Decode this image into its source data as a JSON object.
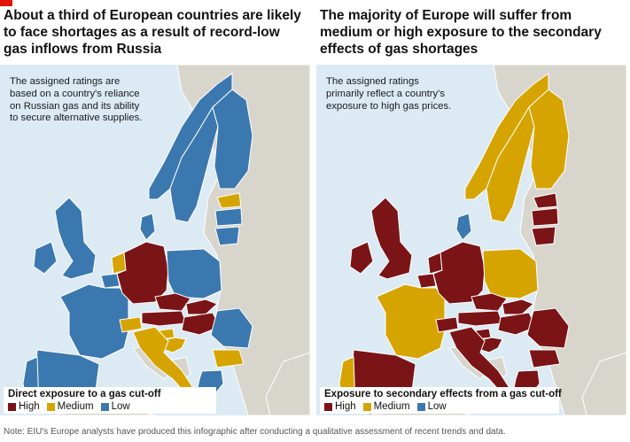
{
  "brand_color": "#e3120b",
  "colors": {
    "high": "#7b1416",
    "medium": "#d6a400",
    "low": "#3b78af",
    "sea": "#dceaf4",
    "land": "#d8d5cd"
  },
  "left_panel": {
    "title": "About a third of European countries  are likely to face shortages as a result of record-low gas inflows from Russia",
    "note": "The assigned ratings are based on a country's reliance on Russian gas and its ability to secure alternative supplies.",
    "legend_title": "Direct exposure to a gas cut-off",
    "ratings": {
      "norway": "low",
      "sweden": "low",
      "finland": "low",
      "estonia": "medium",
      "latvia": "low",
      "lithuania": "low",
      "denmark": "low",
      "uk": "low",
      "ireland": "low",
      "netherlands": "medium",
      "belgium": "low",
      "france": "low",
      "spain": "low",
      "portugal": "low",
      "germany": "high",
      "poland": "low",
      "czechia": "high",
      "slovakia": "high",
      "austria": "high",
      "hungary": "high",
      "switzerland": "medium",
      "italy": "medium",
      "slovenia": "medium",
      "croatia": "medium",
      "romania": "low",
      "bulgaria": "medium",
      "greece": "low"
    }
  },
  "right_panel": {
    "title": "The majority of Europe will suffer from medium or high exposure to the  secondary effects of gas shortages",
    "note": "The assigned ratings primarily reflect a country's exposure to high gas prices.",
    "legend_title": "Exposure to secondary effects from a gas cut-off",
    "ratings": {
      "norway": "medium",
      "sweden": "medium",
      "finland": "medium",
      "estonia": "high",
      "latvia": "high",
      "lithuania": "high",
      "denmark": "low",
      "uk": "high",
      "ireland": "high",
      "netherlands": "high",
      "belgium": "high",
      "france": "medium",
      "spain": "high",
      "portugal": "medium",
      "germany": "high",
      "poland": "medium",
      "czechia": "high",
      "slovakia": "high",
      "austria": "high",
      "hungary": "high",
      "switzerland": "high",
      "italy": "high",
      "slovenia": "high",
      "croatia": "high",
      "romania": "high",
      "bulgaria": "high",
      "greece": "high"
    }
  },
  "legend": {
    "high": "High",
    "medium": "Medium",
    "low": "Low"
  },
  "source": "Note: EIU's Europe analysts have produced this infographic after conducting a qualitative assessment of recent trends and data."
}
